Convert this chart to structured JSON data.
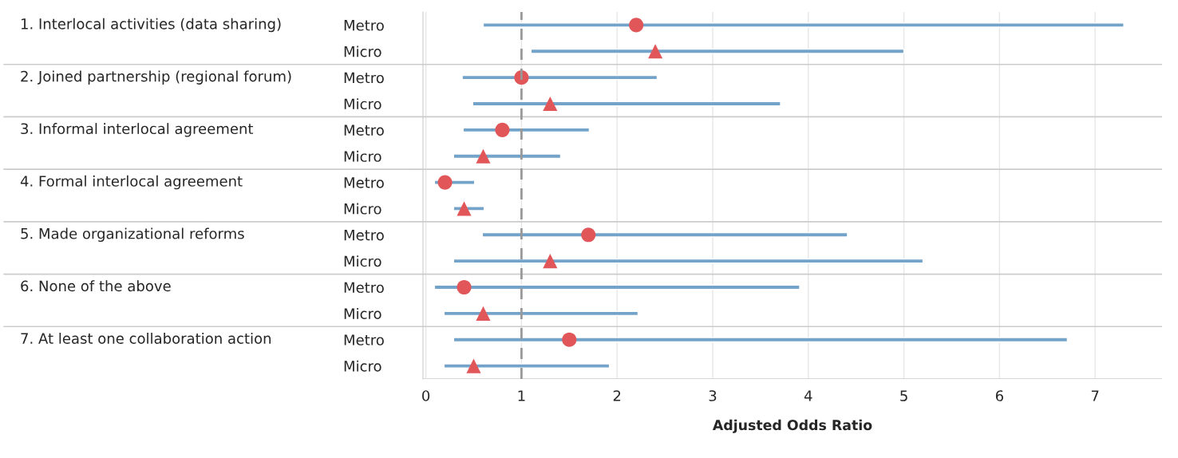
{
  "chart_data": {
    "type": "bar",
    "orientation": "horizontal",
    "xlabel": "Adjusted Odds Ratio",
    "categories": [
      "Metro",
      "Micro",
      "Metro",
      "Micro",
      "Metro",
      "Micro",
      "Metro",
      "Micro",
      "Metro",
      "Micro",
      "Metro",
      "Micro",
      "Metro",
      "Micro"
    ],
    "annotations": [
      "1. Interlocal activities (data sharing)",
      "2. Joined partnership (regional forum)",
      "3. Informal interlocal agreement",
      "4. Formal interlocal agreement",
      "5. Made organizational reforms",
      "6. None of the above",
      "7. At least one collaboration action"
    ],
    "series": [
      {
        "color": "#74a3c9",
        "base": [
          0.6,
          1.1,
          0.38,
          0.49,
          0.39,
          0.29,
          0.09,
          0.29,
          0.59,
          0.29,
          0.09,
          0.19,
          0.29,
          0.19
        ],
        "values": [
          6.7,
          3.9,
          2.04,
          3.22,
          1.32,
          1.12,
          0.42,
          0.32,
          3.82,
          4.91,
          3.82,
          2.03,
          6.42,
          1.73
        ]
      },
      {
        "type": "scatter",
        "color": "#e15759",
        "marker": "circle",
        "values": [
          2.2,
          null,
          1.0,
          null,
          0.8,
          null,
          0.2,
          null,
          1.7,
          null,
          0.4,
          null,
          1.5,
          null
        ]
      },
      {
        "type": "scatter",
        "color": "#e15759",
        "marker": "triangle",
        "values": [
          null,
          2.4,
          null,
          1.3,
          null,
          0.6,
          null,
          0.4,
          null,
          1.3,
          null,
          0.6,
          null,
          0.5
        ]
      }
    ],
    "xlim": [
      -0.03,
      7.7
    ],
    "xticks": [
      0,
      1,
      2,
      3,
      4,
      5,
      6,
      7
    ],
    "grid": "x",
    "ref_lines": [
      {
        "axis": "x",
        "value": 1,
        "color": "#999999",
        "line_style": "dashed"
      }
    ]
  }
}
